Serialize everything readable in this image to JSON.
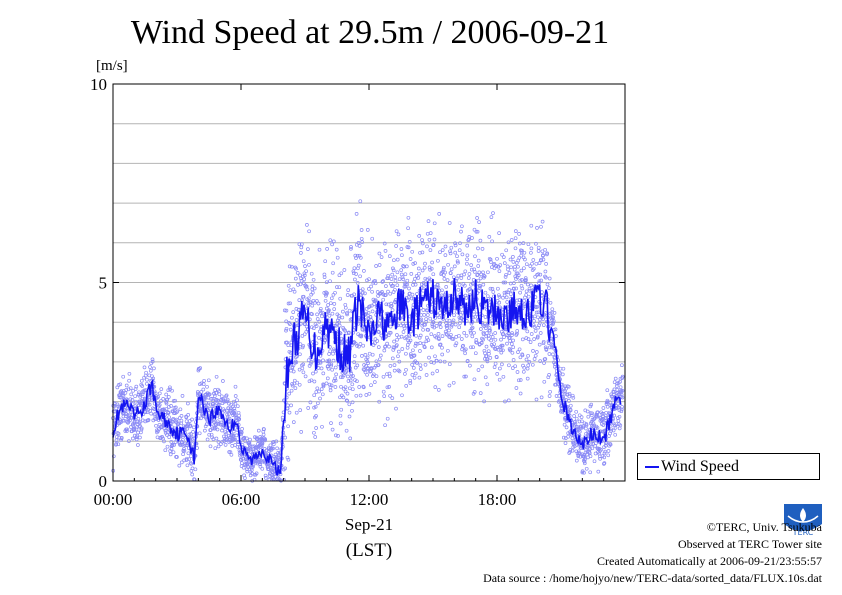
{
  "chart_data": {
    "type": "scatter",
    "title": "Wind Speed at 29.5m / 2006-09-21",
    "y_unit": "[m/s]",
    "ylim": [
      0,
      10
    ],
    "yticks": [
      "0",
      "5",
      "10"
    ],
    "xlim_hours": [
      0,
      24
    ],
    "xticks": [
      "00:00",
      "06:00",
      "12:00",
      "18:00"
    ],
    "xlabel_date": "Sep-21",
    "xlabel_zone": "(LST)",
    "grid": true,
    "legend_position": "bottom-right, outside plot",
    "series": [
      {
        "name": "Wind Speed",
        "color": "#1515f0",
        "point_color": "#8a8af5",
        "mean_line": [
          [
            0.0,
            1.3
          ],
          [
            0.33,
            1.8
          ],
          [
            0.67,
            1.9
          ],
          [
            1.0,
            1.6
          ],
          [
            1.5,
            1.9
          ],
          [
            1.83,
            2.5
          ],
          [
            2.0,
            1.8
          ],
          [
            2.5,
            1.5
          ],
          [
            3.0,
            1.2
          ],
          [
            3.5,
            1.2
          ],
          [
            3.83,
            0.5
          ],
          [
            4.0,
            2.2
          ],
          [
            4.5,
            1.6
          ],
          [
            5.0,
            1.8
          ],
          [
            5.5,
            1.3
          ],
          [
            5.83,
            1.6
          ],
          [
            6.0,
            0.8
          ],
          [
            6.5,
            0.5
          ],
          [
            7.0,
            0.8
          ],
          [
            7.5,
            0.4
          ],
          [
            7.83,
            0.2
          ],
          [
            8.17,
            2.8
          ],
          [
            8.5,
            3.5
          ],
          [
            9.0,
            4.2
          ],
          [
            9.5,
            3.2
          ],
          [
            10.0,
            4.0
          ],
          [
            10.5,
            3.5
          ],
          [
            11.0,
            3.0
          ],
          [
            11.5,
            4.6
          ],
          [
            12.0,
            3.5
          ],
          [
            12.5,
            4.2
          ],
          [
            13.0,
            3.8
          ],
          [
            13.5,
            4.5
          ],
          [
            14.0,
            4.0
          ],
          [
            14.5,
            4.5
          ],
          [
            15.0,
            4.6
          ],
          [
            15.5,
            4.3
          ],
          [
            16.0,
            4.7
          ],
          [
            16.5,
            4.3
          ],
          [
            17.0,
            4.6
          ],
          [
            17.5,
            4.2
          ],
          [
            18.0,
            4.3
          ],
          [
            18.5,
            4.1
          ],
          [
            19.0,
            4.4
          ],
          [
            19.5,
            4.2
          ],
          [
            20.0,
            4.7
          ],
          [
            20.33,
            4.3
          ],
          [
            20.67,
            3.5
          ],
          [
            21.0,
            2.2
          ],
          [
            21.5,
            1.3
          ],
          [
            22.0,
            0.9
          ],
          [
            22.5,
            1.2
          ],
          [
            23.0,
            1.0
          ],
          [
            23.5,
            1.9
          ],
          [
            23.83,
            2.1
          ]
        ],
        "scatter_spread": [
          [
            0,
            6,
            0.9
          ],
          [
            6,
            8,
            0.7
          ],
          [
            8,
            12,
            2.5
          ],
          [
            12,
            20.5,
            2.2
          ],
          [
            20.5,
            24,
            0.9
          ]
        ]
      }
    ]
  },
  "legend": {
    "label": "Wind Speed"
  },
  "credits": {
    "line1": "©TERC, Univ. Tsukuba",
    "line2": "Observed at TERC Tower site",
    "line3": "Created Automatically at 2006-09-21/23:55:57",
    "line4": "Data source : /home/hojyo/new/TERC-data/sorted_data/FLUX.10s.dat"
  },
  "logo": {
    "name": "terc-logo",
    "color": "#1f5fbf",
    "text": "TERC"
  }
}
